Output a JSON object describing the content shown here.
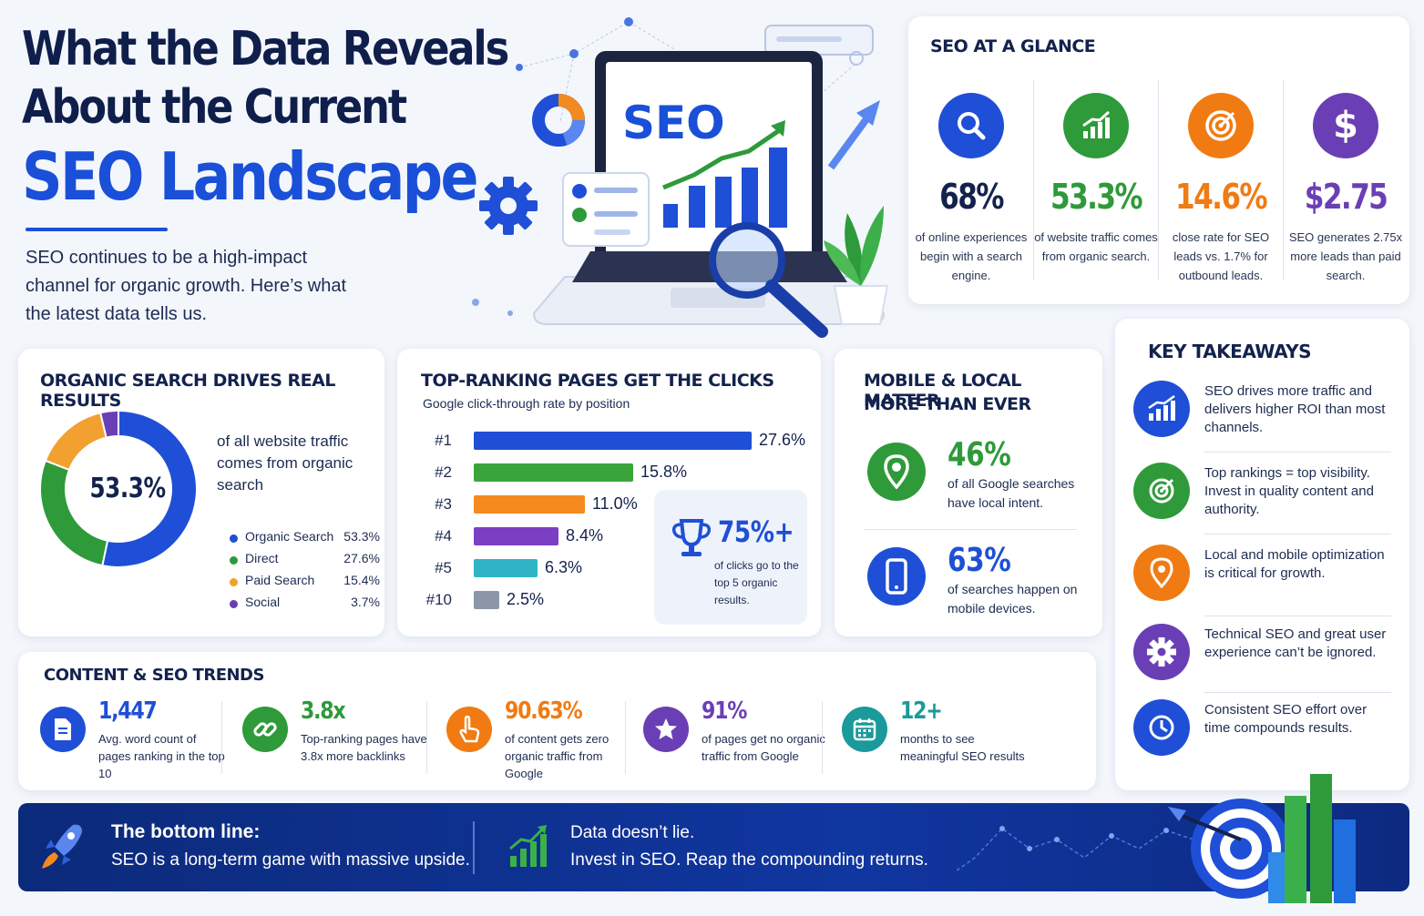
{
  "header": {
    "title_line1": "What the Data Reveals",
    "title_line2": "About the Current",
    "title_line3": "SEO Landscape",
    "intro": "SEO continues to be a high-impact channel for organic growth. Here’s what the latest data tells us.",
    "laptop_screen_text": "SEO"
  },
  "glance": {
    "title": "SEO AT A GLANCE",
    "items": [
      {
        "value": "68%",
        "desc": "of online experiences begin with a search engine.",
        "icon": "search-icon",
        "color": "#1f4fd6"
      },
      {
        "value": "53.3%",
        "desc": "of website traffic comes from organic search.",
        "icon": "growth-chart-icon",
        "color": "#2e9a3a"
      },
      {
        "value": "14.6%",
        "desc": "close rate for SEO leads vs. 1.7% for outbound leads.",
        "icon": "target-icon",
        "color": "#f07b12"
      },
      {
        "value": "$2.75",
        "desc": "SEO generates 2.75x more leads than paid search.",
        "icon": "dollar-icon",
        "color": "#6a3fb5"
      }
    ]
  },
  "organic": {
    "title": "ORGANIC SEARCH DRIVES REAL RESULTS",
    "center_value": "53.3%",
    "caption": "of all website traffic comes from organic search",
    "legend": [
      {
        "label": "Organic Search",
        "value": "53.3%",
        "share": 53.3,
        "color": "#1f4fd6"
      },
      {
        "label": "Direct",
        "value": "27.6%",
        "share": 27.6,
        "color": "#2e9a3a"
      },
      {
        "label": "Paid Search",
        "value": "15.4%",
        "share": 15.4,
        "color": "#f2a030"
      },
      {
        "label": "Social",
        "value": "3.7%",
        "share": 3.7,
        "color": "#6a3fb5"
      }
    ]
  },
  "ctr": {
    "title": "TOP-RANKING PAGES GET THE CLICKS",
    "subtitle": "Google click-through rate by position",
    "bars": [
      {
        "position": "#1",
        "label": "27.6%",
        "value": 27.6,
        "color": "#1f4fd6"
      },
      {
        "position": "#2",
        "label": "15.8%",
        "value": 15.8,
        "color": "#3aa43a"
      },
      {
        "position": "#3",
        "label": "11.0%",
        "value": 11.0,
        "color": "#f58a1f"
      },
      {
        "position": "#4",
        "label": "8.4%",
        "value": 8.4,
        "color": "#7b3fc4"
      },
      {
        "position": "#5",
        "label": "6.3%",
        "value": 6.3,
        "color": "#2fb4c6"
      },
      {
        "position": "#10",
        "label": "2.5%",
        "value": 2.5,
        "color": "#8d96a6"
      }
    ],
    "callout_value": "75%+",
    "callout_text": "of clicks go to the top 5 organic results."
  },
  "mobile": {
    "title_line1": "MOBILE & LOCAL MATTER",
    "title_line2": "MORE THAN EVER",
    "items": [
      {
        "value": "46%",
        "desc": "of all Google searches have local intent.",
        "icon": "map-pin-icon",
        "color": "#2e9a3a"
      },
      {
        "value": "63%",
        "desc": "of searches happen on mobile devices.",
        "icon": "smartphone-icon",
        "color": "#1f4fd6"
      }
    ]
  },
  "takeaways": {
    "title": "KEY TAKEAWAYS",
    "items": [
      {
        "text": "SEO drives more traffic and delivers higher ROI than most channels.",
        "icon": "growth-chart-icon",
        "color": "#1f4fd6"
      },
      {
        "text": "Top rankings = top visibility. Invest in quality content and authority.",
        "icon": "target-icon",
        "color": "#2e9a3a"
      },
      {
        "text": "Local and mobile optimization is critical for growth.",
        "icon": "map-pin-icon",
        "color": "#f07b12"
      },
      {
        "text": "Technical SEO and great user experience can’t be ignored.",
        "icon": "gear-icon",
        "color": "#6a3fb5"
      },
      {
        "text": "Consistent SEO effort over time compounds results.",
        "icon": "clock-icon",
        "color": "#1f4fd6"
      }
    ]
  },
  "trends": {
    "title": "CONTENT & SEO TRENDS",
    "items": [
      {
        "value": "1,447",
        "desc": "Avg. word count of pages ranking in the top 10",
        "icon": "document-icon",
        "color": "#1f4fd6"
      },
      {
        "value": "3.8x",
        "desc": "Top-ranking pages have 3.8x more backlinks",
        "icon": "link-icon",
        "color": "#2e9a3a"
      },
      {
        "value": "90.63%",
        "desc": "of content gets zero organic traffic from Google",
        "icon": "pointer-hand-icon",
        "color": "#f07b12"
      },
      {
        "value": "91%",
        "desc": "of pages get no organic traffic from Google",
        "icon": "star-icon",
        "color": "#6a3fb5"
      },
      {
        "value": "12+",
        "desc": "months to see meaningful SEO results",
        "icon": "calendar-icon",
        "color": "#1a9a9a"
      }
    ]
  },
  "footer": {
    "left_title": "The bottom line:",
    "left_text": "SEO is a long-term game with massive upside.",
    "right_title": "Data doesn’t lie.",
    "right_text": "Invest in SEO. Reap the compounding returns."
  }
}
